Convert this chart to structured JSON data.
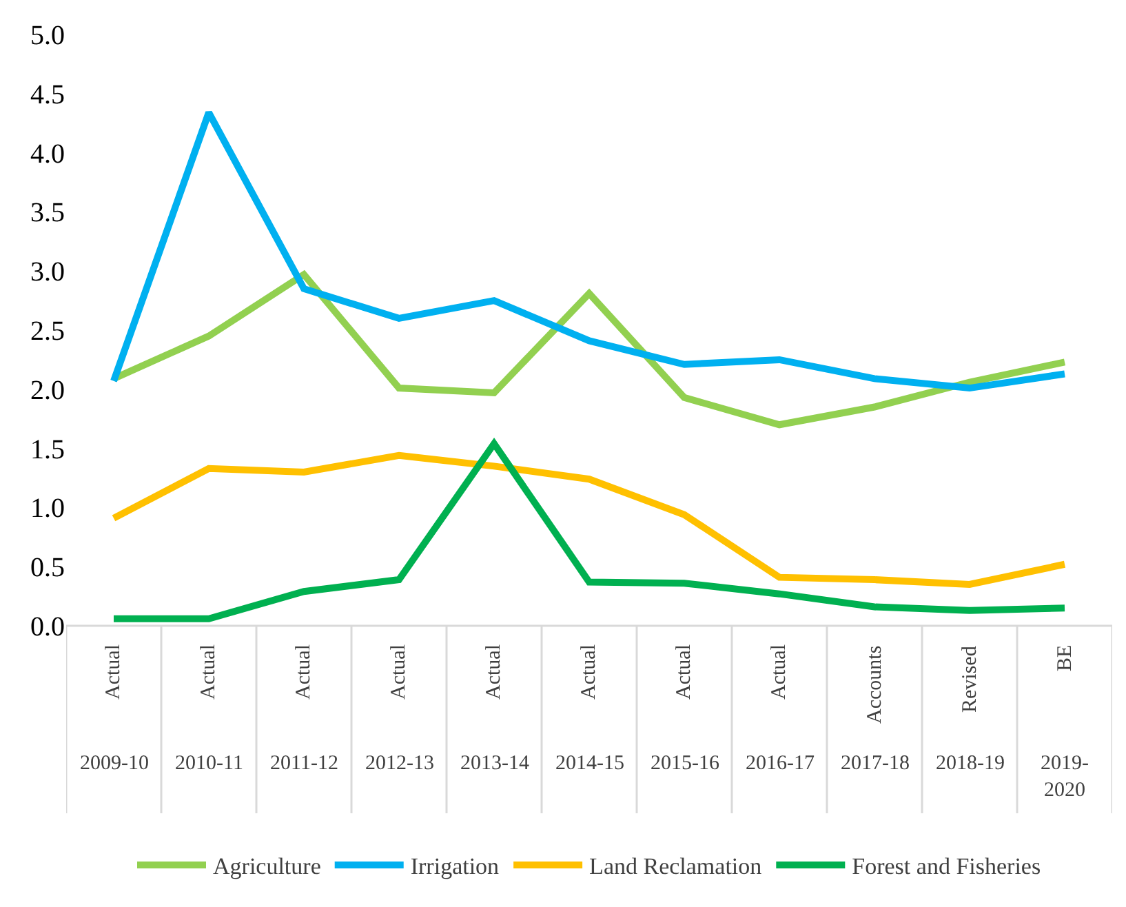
{
  "chart_data": {
    "type": "line",
    "categories": [
      "2009-10",
      "2010-11",
      "2011-12",
      "2012-13",
      "2013-14",
      "2014-15",
      "2015-16",
      "2016-17",
      "2017-18",
      "2018-19",
      "2019-2020"
    ],
    "annotations": [
      "Actual",
      "Actual",
      "Actual",
      "Actual",
      "Actual",
      "Actual",
      "Actual",
      "Actual",
      "Accounts",
      "Revised",
      "BE"
    ],
    "series": [
      {
        "name": "Agriculture",
        "color": "#92d050",
        "values": [
          2.09,
          2.45,
          2.97,
          2.01,
          1.97,
          2.81,
          1.93,
          1.7,
          1.85,
          2.06,
          2.23
        ]
      },
      {
        "name": "Irrigation",
        "color": "#00b0f0",
        "values": [
          2.07,
          4.34,
          2.85,
          2.6,
          2.75,
          2.41,
          2.21,
          2.25,
          2.09,
          2.01,
          2.13
        ]
      },
      {
        "name": "Land Reclamation",
        "color": "#ffc000",
        "values": [
          0.91,
          1.33,
          1.3,
          1.44,
          1.35,
          1.24,
          0.94,
          0.41,
          0.39,
          0.35,
          0.52
        ]
      },
      {
        "name": "Forest and Fisheries",
        "color": "#00b050",
        "values": [
          0.06,
          0.06,
          0.29,
          0.39,
          1.54,
          0.37,
          0.36,
          0.27,
          0.16,
          0.13,
          0.15
        ]
      }
    ],
    "ylim": [
      0,
      5
    ],
    "yticks": [
      {
        "value": 0,
        "label": "0.0"
      },
      {
        "value": 0.5,
        "label": "0.5"
      },
      {
        "value": 1,
        "label": "1.0"
      },
      {
        "value": 1.5,
        "label": "1.5"
      },
      {
        "value": 2,
        "label": "2.0"
      },
      {
        "value": 2.5,
        "label": "2.5"
      },
      {
        "value": 3,
        "label": "3.0"
      },
      {
        "value": 3.5,
        "label": "3.5"
      },
      {
        "value": 4,
        "label": "4.0"
      },
      {
        "value": 4.5,
        "label": "4.5"
      },
      {
        "value": 5,
        "label": "5.0"
      }
    ],
    "legend": "bottom",
    "marker": "none",
    "line_style": "solid"
  }
}
